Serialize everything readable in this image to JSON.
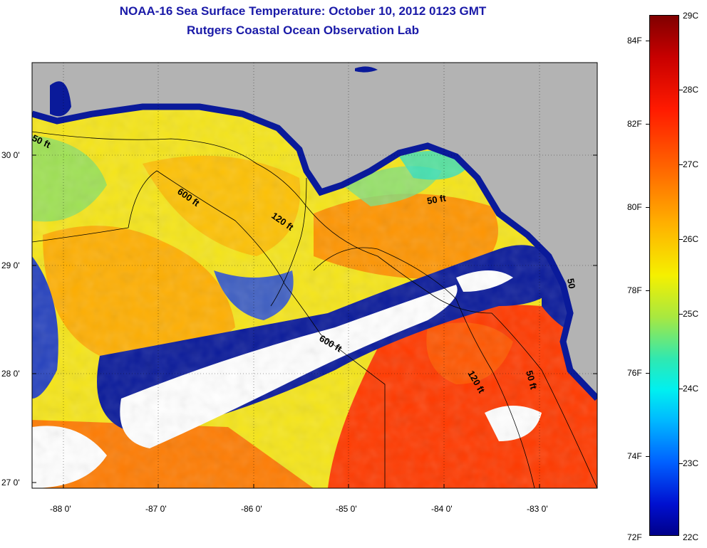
{
  "header": {
    "title": "NOAA-16 Sea Surface Temperature:  October 10, 2012 0123 GMT",
    "subtitle": "Rutgers Coastal Ocean Observation Lab"
  },
  "axes": {
    "y_labels": [
      "30 0'",
      "29 0'",
      "28 0'",
      "27 0'"
    ],
    "x_labels": [
      "-88 0'",
      "-87 0'",
      "-86 0'",
      "-85 0'",
      "-84 0'",
      "-83 0'"
    ]
  },
  "isobaths": [
    "50 ft",
    "600 ft",
    "120 ft",
    "50 ft",
    "600 ft",
    "120 ft",
    "50 ft",
    "50"
  ],
  "colorbar": {
    "fahrenheit": [
      "84F",
      "82F",
      "80F",
      "78F",
      "76F",
      "74F",
      "72F"
    ],
    "celsius": [
      "29C",
      "28C",
      "27C",
      "26C",
      "25C",
      "24C",
      "23C",
      "22C"
    ]
  },
  "colors": {
    "land": "#b3b3b3",
    "cloud": "#ffffff",
    "title": "#1a1aa8",
    "cold": "#0a1a9a",
    "warm": "#ff3a00"
  }
}
